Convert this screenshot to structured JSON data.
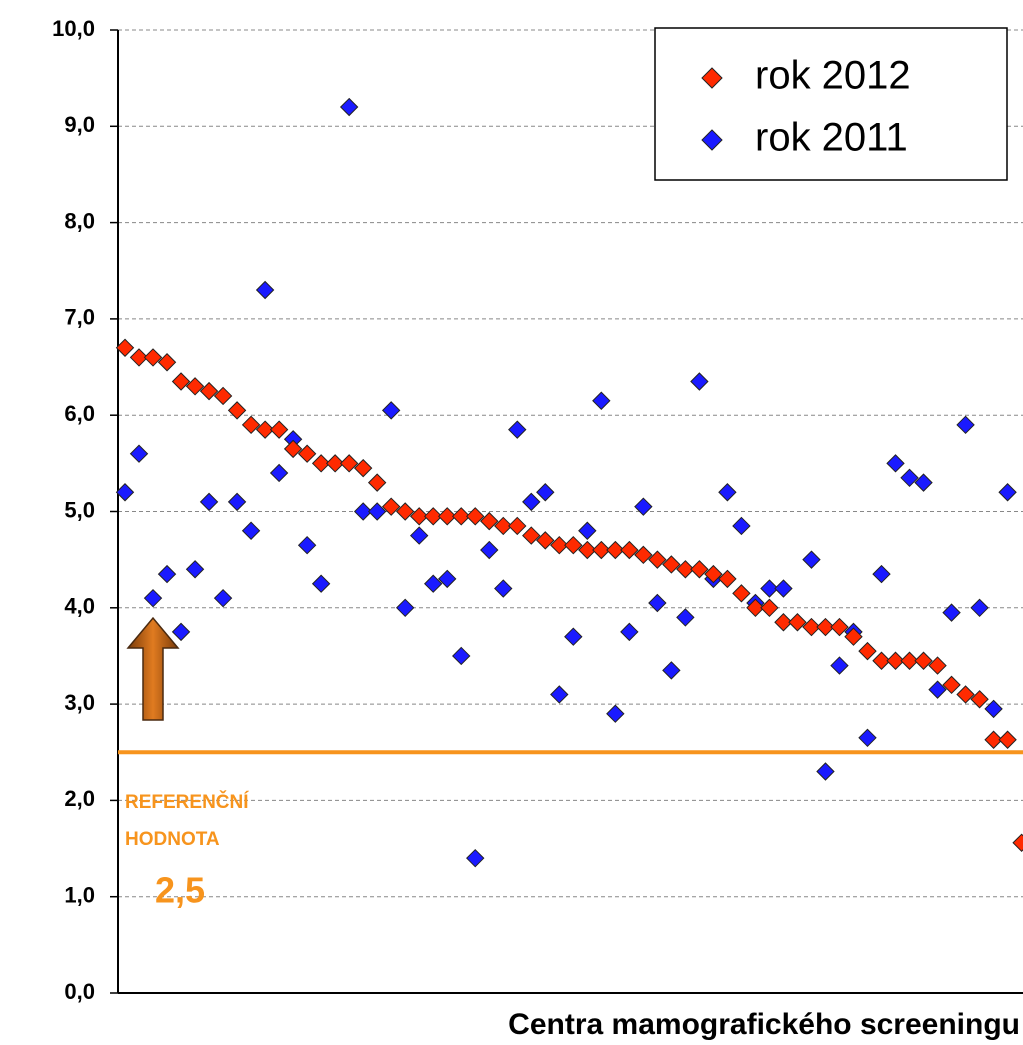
{
  "chart_data": {
    "type": "scatter",
    "x_label": "Centra mamografického screeningu",
    "x": [
      1,
      2,
      3,
      4,
      5,
      6,
      7,
      8,
      9,
      10,
      11,
      12,
      13,
      14,
      15,
      16,
      17,
      18,
      19,
      20,
      21,
      22,
      23,
      24,
      25,
      26,
      27,
      28,
      29,
      30,
      31,
      32,
      33,
      34,
      35,
      36,
      37,
      38,
      39,
      40,
      41,
      42,
      43,
      44,
      45,
      46,
      47,
      48,
      49,
      50,
      51,
      52,
      53,
      54,
      55,
      56,
      57,
      58,
      59,
      60,
      61,
      62,
      63,
      64,
      65
    ],
    "xlim": [
      0.5,
      65.1
    ],
    "ylim": [
      0,
      10
    ],
    "yticks": [
      {
        "value": 0,
        "label": "0,0"
      },
      {
        "value": 1,
        "label": "1,0"
      },
      {
        "value": 2,
        "label": "2,0"
      },
      {
        "value": 3,
        "label": "3,0"
      },
      {
        "value": 4,
        "label": "4,0"
      },
      {
        "value": 5,
        "label": "5,0"
      },
      {
        "value": 6,
        "label": "6,0"
      },
      {
        "value": 7,
        "label": "7,0"
      },
      {
        "value": 8,
        "label": "8,0"
      },
      {
        "value": 9,
        "label": "9,0"
      },
      {
        "value": 10,
        "label": "10,0"
      }
    ],
    "grid": true,
    "legend": "top-right",
    "series": [
      {
        "name": "rok 2012",
        "color": "#ff2a00",
        "values": [
          6.7,
          6.6,
          6.6,
          6.55,
          6.35,
          6.3,
          6.25,
          6.2,
          6.05,
          5.9,
          5.85,
          5.85,
          5.65,
          5.6,
          5.5,
          5.5,
          5.5,
          5.45,
          5.3,
          5.05,
          5.0,
          4.95,
          4.95,
          4.95,
          4.95,
          4.95,
          4.9,
          4.85,
          4.85,
          4.75,
          4.7,
          4.65,
          4.65,
          4.6,
          4.6,
          4.6,
          4.6,
          4.55,
          4.5,
          4.45,
          4.4,
          4.4,
          4.35,
          4.3,
          4.15,
          4.0,
          4.0,
          3.85,
          3.85,
          3.8,
          3.8,
          3.8,
          3.7,
          3.55,
          3.45,
          3.45,
          3.45,
          3.45,
          3.4,
          3.2,
          3.1,
          3.05,
          2.63,
          2.63,
          1.56
        ]
      },
      {
        "name": "rok 2011",
        "color": "#1a1aff",
        "values": [
          5.2,
          5.6,
          4.1,
          4.35,
          3.75,
          4.4,
          5.1,
          4.1,
          5.1,
          4.8,
          7.3,
          5.4,
          5.75,
          4.65,
          4.25,
          null,
          9.2,
          5.0,
          5.0,
          6.05,
          4.0,
          4.75,
          4.25,
          4.3,
          3.5,
          1.4,
          4.6,
          4.2,
          5.85,
          5.1,
          5.2,
          3.1,
          3.7,
          4.8,
          6.15,
          2.9,
          3.75,
          5.05,
          4.05,
          3.35,
          3.9,
          6.35,
          4.3,
          5.2,
          4.85,
          4.05,
          4.2,
          4.2,
          null,
          4.5,
          2.3,
          3.4,
          3.75,
          2.65,
          4.35,
          5.5,
          5.35,
          5.3,
          3.15,
          3.95,
          5.9,
          4.0,
          2.95,
          5.2,
          null
        ]
      }
    ],
    "reference_line": {
      "value": 2.5,
      "label": "2,5",
      "color": "#f7941d"
    },
    "annotation_lines": [
      "REFERENČNÍ",
      "HODNOTA"
    ]
  }
}
